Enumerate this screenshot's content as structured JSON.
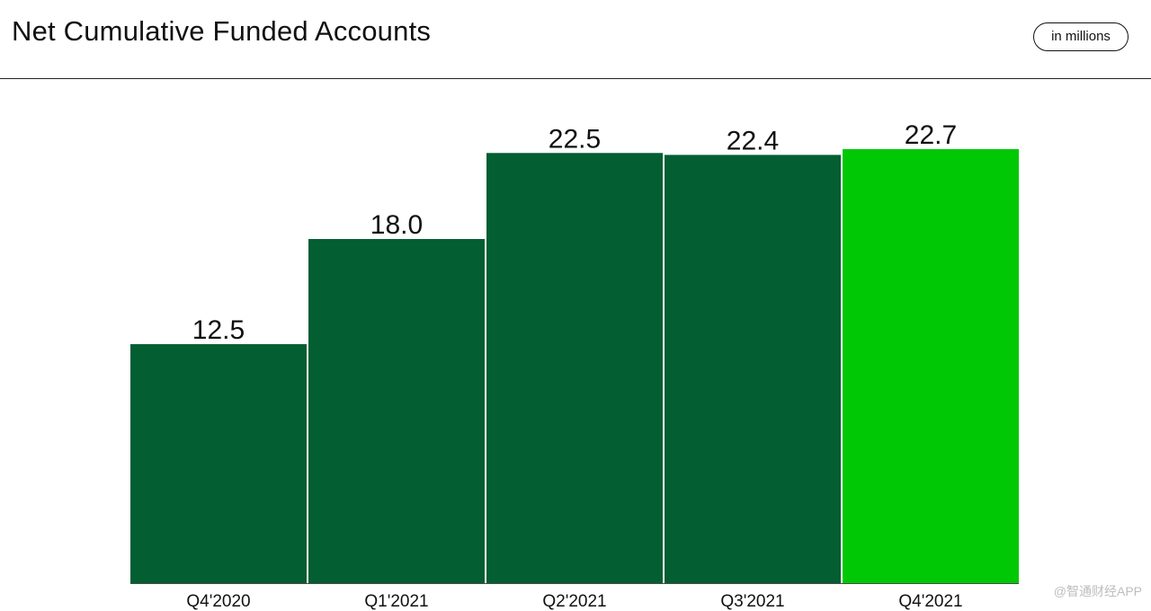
{
  "header": {
    "title": "Net Cumulative Funded Accounts",
    "unit_badge": "in millions"
  },
  "watermark": "@智通财经APP",
  "chart_data": {
    "type": "bar",
    "title": "Net Cumulative Funded Accounts",
    "unit": "in millions",
    "categories": [
      "Q4'2020",
      "Q1'2021",
      "Q2'2021",
      "Q3'2021",
      "Q4'2021"
    ],
    "values": [
      12.5,
      18.0,
      22.5,
      22.4,
      22.7
    ],
    "value_labels": [
      "12.5",
      "18.0",
      "22.5",
      "22.4",
      "22.7"
    ],
    "ylim": [
      0,
      22.7
    ],
    "grid": false,
    "colors": {
      "bar": "#035e32",
      "highlight_bar": "#00c805"
    },
    "highlight_index": 4
  }
}
